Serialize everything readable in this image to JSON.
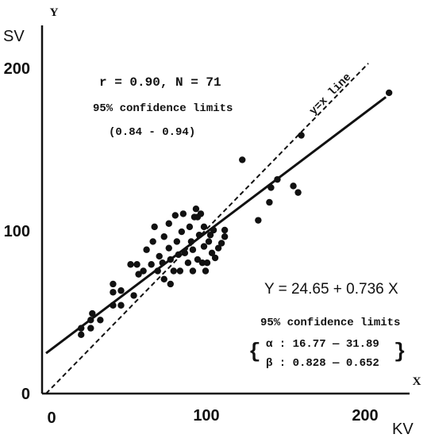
{
  "chart_data": {
    "type": "scatter",
    "title": "",
    "xlabel": "KV",
    "ylabel": "SV",
    "x_axis_letter": "X",
    "y_axis_letter": "Y",
    "xlim": [
      0,
      230
    ],
    "ylim": [
      0,
      225
    ],
    "xticks": [
      "0",
      "100",
      "200"
    ],
    "yticks": [
      "0",
      "100",
      "200"
    ],
    "grid": false,
    "stats_text": {
      "r_n": "r = 0.90,  N = 71",
      "conf_title": "95% confidence limits",
      "conf_range": "(0.84 - 0.94)",
      "identity_label": "y=x line"
    },
    "regression_text": {
      "equation": "Y = 24.65 + 0.736 X",
      "conf_title": "95% confidence limits",
      "alpha": "α : 16.77 — 31.89",
      "beta": "β : 0.828 — 0.652",
      "brace_open": "{",
      "brace_close": "}"
    },
    "regression_line": {
      "intercept": 24.65,
      "slope": 0.736,
      "x_range": [
        0,
        230
      ]
    },
    "identity_line": {
      "x_range": [
        0,
        202
      ]
    },
    "points": [
      {
        "x": 22,
        "y": 36
      },
      {
        "x": 22,
        "y": 40
      },
      {
        "x": 28,
        "y": 40
      },
      {
        "x": 28,
        "y": 45
      },
      {
        "x": 29,
        "y": 49
      },
      {
        "x": 34,
        "y": 45
      },
      {
        "x": 42,
        "y": 54
      },
      {
        "x": 42,
        "y": 62
      },
      {
        "x": 42,
        "y": 67
      },
      {
        "x": 47,
        "y": 54
      },
      {
        "x": 47,
        "y": 63
      },
      {
        "x": 53,
        "y": 79
      },
      {
        "x": 55,
        "y": 60
      },
      {
        "x": 57,
        "y": 79
      },
      {
        "x": 58,
        "y": 73
      },
      {
        "x": 61,
        "y": 75
      },
      {
        "x": 63,
        "y": 88
      },
      {
        "x": 66,
        "y": 79
      },
      {
        "x": 67,
        "y": 93
      },
      {
        "x": 68,
        "y": 102
      },
      {
        "x": 70,
        "y": 75
      },
      {
        "x": 71,
        "y": 84
      },
      {
        "x": 73,
        "y": 80
      },
      {
        "x": 74,
        "y": 70
      },
      {
        "x": 74,
        "y": 96
      },
      {
        "x": 77,
        "y": 89
      },
      {
        "x": 77,
        "y": 104
      },
      {
        "x": 78,
        "y": 82
      },
      {
        "x": 78,
        "y": 67
      },
      {
        "x": 80,
        "y": 75
      },
      {
        "x": 81,
        "y": 109
      },
      {
        "x": 82,
        "y": 93
      },
      {
        "x": 83,
        "y": 85
      },
      {
        "x": 84,
        "y": 75
      },
      {
        "x": 85,
        "y": 99
      },
      {
        "x": 86,
        "y": 110
      },
      {
        "x": 87,
        "y": 86
      },
      {
        "x": 89,
        "y": 80
      },
      {
        "x": 90,
        "y": 102
      },
      {
        "x": 91,
        "y": 93
      },
      {
        "x": 92,
        "y": 88
      },
      {
        "x": 92,
        "y": 75
      },
      {
        "x": 93,
        "y": 108
      },
      {
        "x": 94,
        "y": 113
      },
      {
        "x": 95,
        "y": 82
      },
      {
        "x": 96,
        "y": 97
      },
      {
        "x": 97,
        "y": 110
      },
      {
        "x": 98,
        "y": 80
      },
      {
        "x": 99,
        "y": 90
      },
      {
        "x": 99,
        "y": 102
      },
      {
        "x": 100,
        "y": 75
      },
      {
        "x": 101,
        "y": 80
      },
      {
        "x": 102,
        "y": 93
      },
      {
        "x": 103,
        "y": 97
      },
      {
        "x": 104,
        "y": 86
      },
      {
        "x": 105,
        "y": 100
      },
      {
        "x": 106,
        "y": 83
      },
      {
        "x": 108,
        "y": 89
      },
      {
        "x": 110,
        "y": 92
      },
      {
        "x": 112,
        "y": 100
      },
      {
        "x": 112,
        "y": 96
      },
      {
        "x": 123,
        "y": 143
      },
      {
        "x": 133,
        "y": 106
      },
      {
        "x": 140,
        "y": 117
      },
      {
        "x": 141,
        "y": 126
      },
      {
        "x": 145,
        "y": 131
      },
      {
        "x": 155,
        "y": 127
      },
      {
        "x": 158,
        "y": 123
      },
      {
        "x": 160,
        "y": 158
      },
      {
        "x": 215,
        "y": 184
      },
      {
        "x": 95,
        "y": 108
      }
    ]
  }
}
